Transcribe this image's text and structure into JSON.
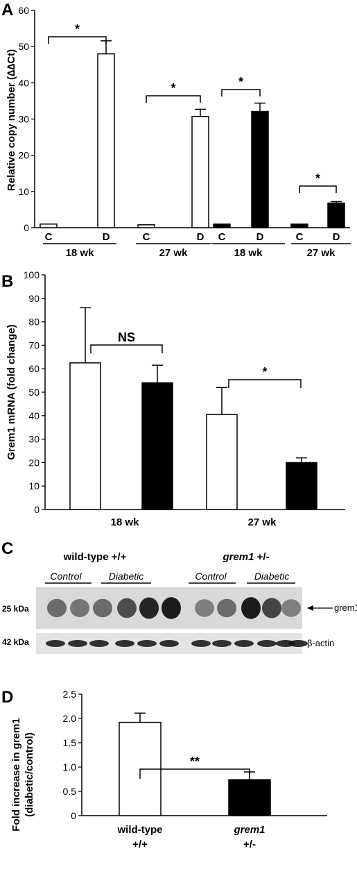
{
  "panels": {
    "A": "A",
    "B": "B",
    "C": "C",
    "D": "D"
  },
  "chart_data": [
    {
      "id": "A",
      "type": "bar",
      "ylabel": "Relative copy number (∆∆Ct)",
      "ylim": [
        0,
        60
      ],
      "yticks": [
        0,
        10,
        20,
        30,
        40,
        50,
        60
      ],
      "categories": [
        "C",
        "D",
        "C",
        "D",
        "C",
        "D",
        "C",
        "D"
      ],
      "groups": [
        "18 wk",
        "27 wk",
        "18 wk",
        "27 wk"
      ],
      "values": [
        1.0,
        48.0,
        0.8,
        30.7,
        1.0,
        32.1,
        1.0,
        6.8
      ],
      "errors": [
        0,
        3.6,
        0,
        2.0,
        0,
        2.3,
        0,
        0.4
      ],
      "fills": [
        "open",
        "open",
        "open",
        "open",
        "filled",
        "filled",
        "filled",
        "filled"
      ],
      "significance": [
        "*",
        "*",
        "*",
        "*"
      ]
    },
    {
      "id": "B",
      "type": "bar",
      "ylabel": "Grem1 mRNA (fold change)",
      "ylim": [
        0,
        100
      ],
      "yticks": [
        0,
        10,
        20,
        30,
        40,
        50,
        60,
        70,
        80,
        90,
        100
      ],
      "groups": [
        "18 wk",
        "27 wk"
      ],
      "values": [
        62.5,
        54.0,
        40.5,
        20.0
      ],
      "errors": [
        23.5,
        7.5,
        11.5,
        2.0
      ],
      "fills": [
        "open",
        "filled",
        "open",
        "filled"
      ],
      "significance": [
        "NS",
        "*"
      ]
    },
    {
      "id": "D",
      "type": "bar",
      "ylabel": [
        "Fold increase in grem1",
        "(diabetic/control)"
      ],
      "ylim": [
        0,
        2.5
      ],
      "yticks": [
        "0",
        "0.5",
        "1.0",
        "1.5",
        "2.0",
        "2.5"
      ],
      "categories": [
        {
          "line1": "wild-type",
          "line2": "+/+"
        },
        {
          "line1": "grem1",
          "line2": "+/-"
        }
      ],
      "values": [
        1.92,
        0.74
      ],
      "errors": [
        0.19,
        0.16
      ],
      "fills": [
        "open",
        "filled"
      ],
      "significance": "**"
    }
  ],
  "blot": {
    "group_wt": "wild-type +/+",
    "group_grem_italic": "grem1",
    "group_grem_rest": " +/-",
    "control_label": "Control",
    "diabetic_label": "Diabetic",
    "band_25": "25 kDa",
    "band_42": "42 kDa",
    "grem1_label": "grem1",
    "actin_label": "β-actin"
  }
}
